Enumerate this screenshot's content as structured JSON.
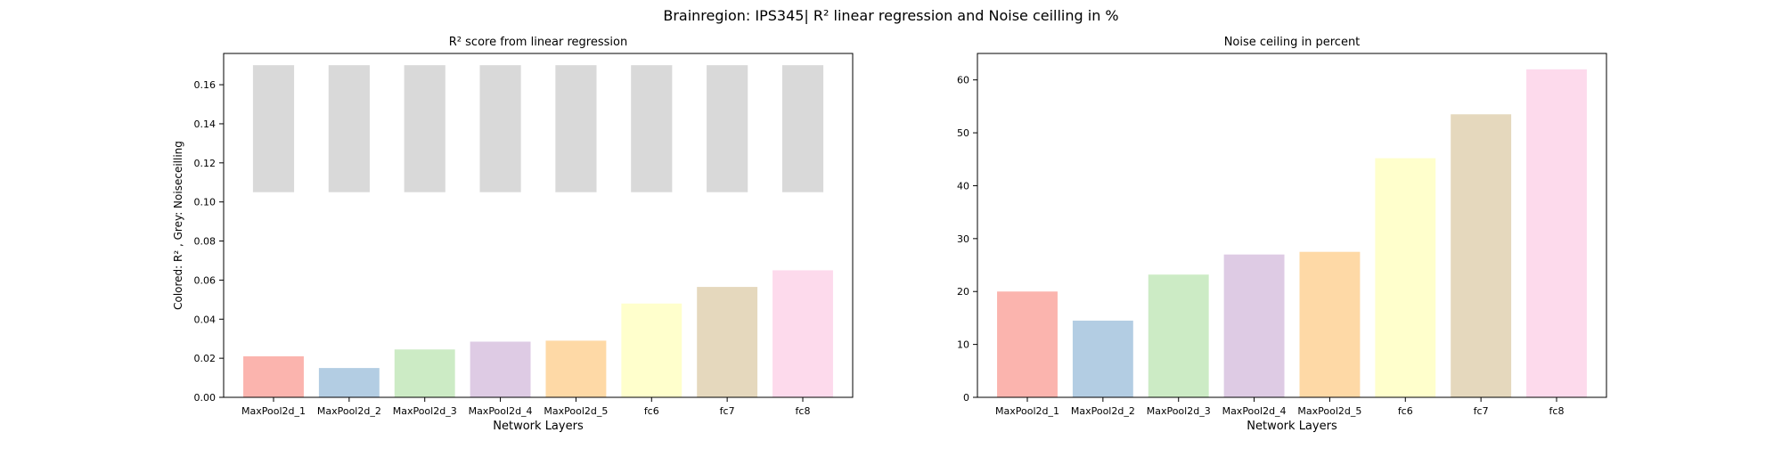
{
  "suptitle": "Brainregion: IPS345| R² linear regression and Noise ceilling in %",
  "colors": [
    "#fbb4ae",
    "#b3cde3",
    "#ccebc5",
    "#decbe4",
    "#fed9a6",
    "#ffffcc",
    "#e5d8bd",
    "#fddaec"
  ],
  "noise_color": "#d9d9d9",
  "chart_data": [
    {
      "type": "bar",
      "title": "R² score from linear regression",
      "xlabel": "Network Layers",
      "ylabel": "Colored: R² , Grey: Noiseceilling",
      "categories": [
        "MaxPool2d_1",
        "MaxPool2d_2",
        "MaxPool2d_3",
        "MaxPool2d_4",
        "MaxPool2d_5",
        "fc6",
        "fc7",
        "fc8"
      ],
      "ylim": [
        0,
        0.176
      ],
      "yticks": [
        "0.00",
        "0.02",
        "0.04",
        "0.06",
        "0.08",
        "0.10",
        "0.12",
        "0.14",
        "0.16"
      ],
      "series": [
        {
          "values": [
            0.021,
            0.015,
            0.0245,
            0.0285,
            0.029,
            0.048,
            0.0565,
            0.065
          ]
        }
      ],
      "noise_ceiling": {
        "low": [
          0.105,
          0.105,
          0.105,
          0.105,
          0.105,
          0.105,
          0.105,
          0.105
        ],
        "high": [
          0.17,
          0.17,
          0.17,
          0.17,
          0.17,
          0.17,
          0.17,
          0.17
        ]
      }
    },
    {
      "type": "bar",
      "title": "Noise ceiling in percent",
      "xlabel": "Network Layers",
      "ylabel": "",
      "categories": [
        "MaxPool2d_1",
        "MaxPool2d_2",
        "MaxPool2d_3",
        "MaxPool2d_4",
        "MaxPool2d_5",
        "fc6",
        "fc7",
        "fc8"
      ],
      "ylim": [
        0,
        65
      ],
      "yticks": [
        "0",
        "10",
        "20",
        "30",
        "40",
        "50",
        "60"
      ],
      "series": [
        {
          "values": [
            20.0,
            14.5,
            23.2,
            27.0,
            27.5,
            45.2,
            53.5,
            62.0
          ]
        }
      ]
    }
  ]
}
